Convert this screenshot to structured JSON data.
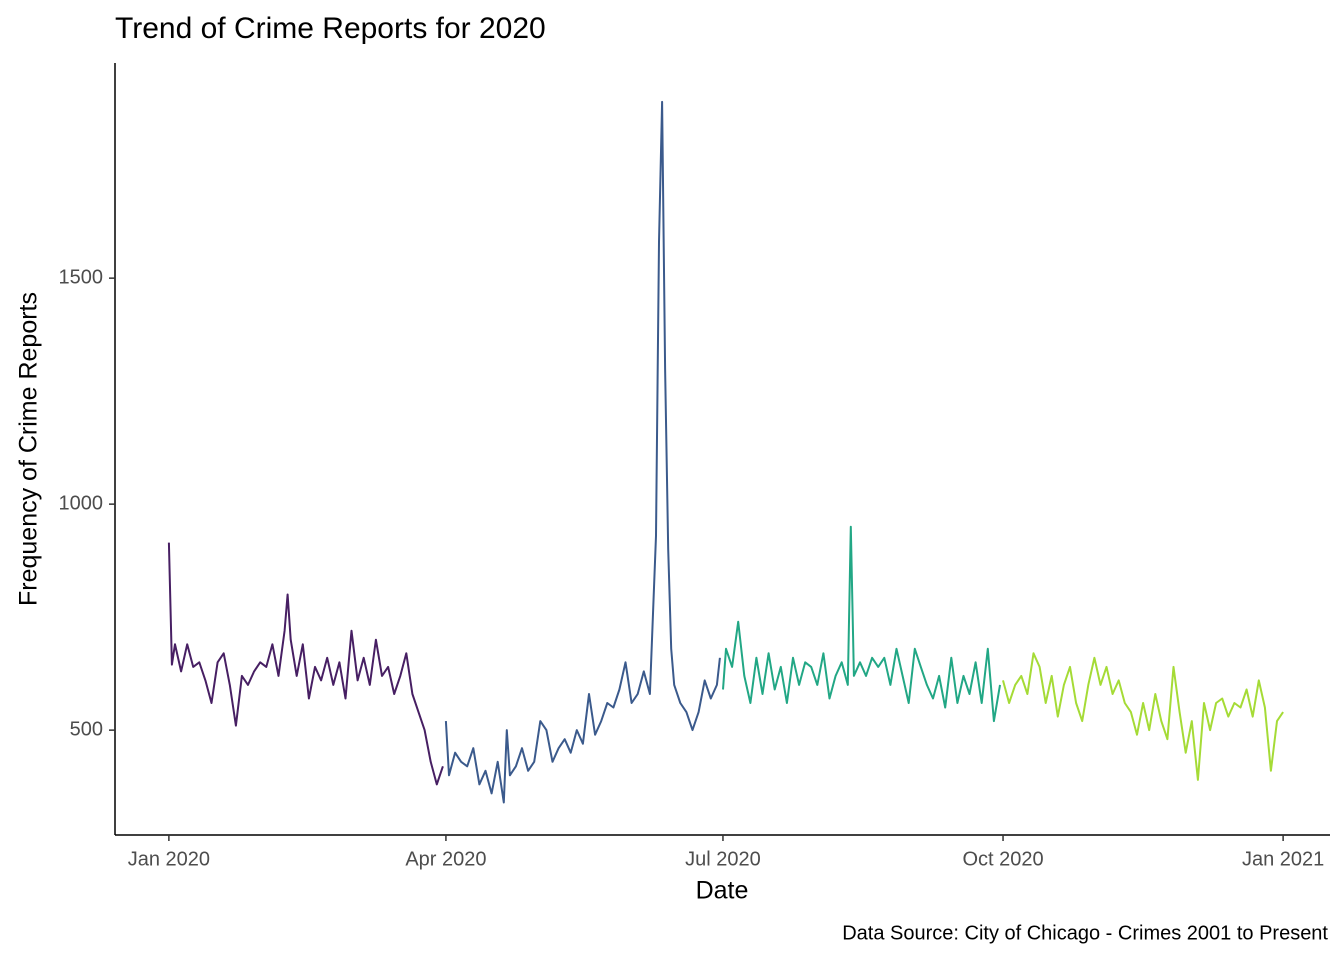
{
  "chart_data": {
    "type": "line",
    "title": "Trend of Crime Reports for 2020",
    "xlabel": "Date",
    "ylabel": "Frequency of Crime Reports",
    "caption": "Data Source: City of Chicago - Crimes 2001 to Present",
    "xlim": [
      -17.7,
      381.4
    ],
    "ylim": [
      268,
      1976
    ],
    "xticks": [
      {
        "value": 0,
        "label": "Jan 2020"
      },
      {
        "value": 91,
        "label": "Apr 2020"
      },
      {
        "value": 182,
        "label": "Jul 2020"
      },
      {
        "value": 274,
        "label": "Oct 2020"
      },
      {
        "value": 366,
        "label": "Jan 2021"
      }
    ],
    "yticks": [
      500,
      1000,
      1500
    ],
    "series": [
      {
        "color": "#471f63",
        "x": [
          0,
          1,
          2,
          4,
          6,
          8,
          10,
          12,
          14,
          16,
          18,
          20,
          22,
          24,
          26,
          28,
          30,
          32,
          34,
          36,
          38,
          39,
          40,
          42,
          44,
          46,
          48,
          50,
          52,
          54,
          56,
          58,
          60,
          62,
          64,
          66,
          68,
          70,
          72,
          74,
          76,
          78,
          80,
          82,
          84,
          86,
          88,
          90
        ],
        "values": [
          915,
          645,
          690,
          630,
          690,
          640,
          650,
          610,
          560,
          650,
          670,
          600,
          510,
          620,
          600,
          630,
          650,
          640,
          690,
          620,
          720,
          800,
          700,
          620,
          690,
          570,
          640,
          610,
          660,
          600,
          650,
          570,
          720,
          610,
          660,
          600,
          700,
          620,
          640,
          580,
          620,
          670,
          580,
          540,
          500,
          430,
          380,
          420
        ]
      },
      {
        "color": "#3b5a8c",
        "x": [
          91,
          92,
          94,
          96,
          98,
          100,
          102,
          104,
          106,
          108,
          110,
          111,
          112,
          114,
          116,
          118,
          120,
          122,
          124,
          126,
          128,
          130,
          132,
          134,
          136,
          138,
          140,
          142,
          144,
          146,
          148,
          150,
          152,
          154,
          156,
          158,
          160,
          161,
          162,
          163,
          164,
          165,
          166,
          168,
          170,
          172,
          174,
          176,
          178,
          180,
          181
        ],
        "values": [
          520,
          400,
          450,
          430,
          420,
          460,
          380,
          410,
          360,
          430,
          340,
          500,
          400,
          420,
          460,
          410,
          430,
          520,
          500,
          430,
          460,
          480,
          450,
          500,
          470,
          580,
          490,
          520,
          560,
          550,
          590,
          650,
          560,
          580,
          630,
          580,
          930,
          1580,
          1890,
          1300,
          900,
          680,
          600,
          560,
          540,
          500,
          540,
          610,
          570,
          600,
          660
        ]
      },
      {
        "color": "#22a785",
        "x": [
          182,
          183,
          185,
          187,
          189,
          191,
          193,
          195,
          197,
          199,
          201,
          203,
          205,
          207,
          209,
          211,
          213,
          215,
          217,
          219,
          221,
          223,
          224,
          225,
          227,
          229,
          231,
          233,
          235,
          237,
          239,
          241,
          243,
          245,
          247,
          249,
          251,
          253,
          255,
          257,
          259,
          261,
          263,
          265,
          267,
          269,
          271,
          273
        ],
        "values": [
          590,
          680,
          640,
          740,
          620,
          560,
          660,
          580,
          670,
          590,
          640,
          560,
          660,
          600,
          650,
          640,
          600,
          670,
          570,
          620,
          650,
          600,
          950,
          620,
          650,
          620,
          660,
          640,
          660,
          600,
          680,
          620,
          560,
          680,
          640,
          600,
          570,
          620,
          550,
          660,
          560,
          620,
          580,
          650,
          560,
          680,
          520,
          600
        ]
      },
      {
        "color": "#a5db36",
        "x": [
          274,
          276,
          278,
          280,
          282,
          284,
          286,
          288,
          290,
          292,
          294,
          296,
          298,
          300,
          302,
          304,
          306,
          308,
          310,
          312,
          314,
          316,
          318,
          320,
          322,
          324,
          326,
          328,
          330,
          332,
          334,
          336,
          338,
          340,
          342,
          344,
          346,
          348,
          350,
          352,
          354,
          356,
          358,
          360,
          362,
          364,
          366
        ],
        "values": [
          610,
          560,
          600,
          620,
          580,
          670,
          640,
          560,
          620,
          530,
          600,
          640,
          560,
          520,
          600,
          660,
          600,
          640,
          580,
          610,
          560,
          540,
          490,
          560,
          500,
          580,
          520,
          480,
          640,
          540,
          450,
          520,
          390,
          560,
          500,
          560,
          570,
          530,
          560,
          550,
          590,
          530,
          610,
          550,
          410,
          520,
          540
        ]
      }
    ]
  }
}
